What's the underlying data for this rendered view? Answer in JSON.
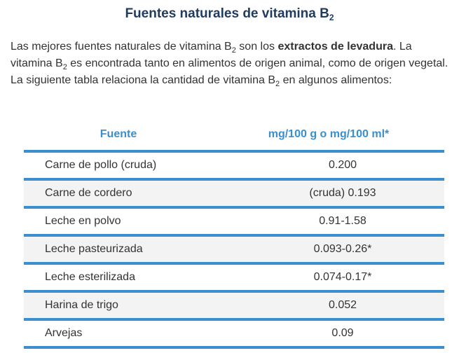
{
  "title": {
    "text": "Fuentes naturales de vitamina B",
    "sub": "2"
  },
  "intro": {
    "p1": "Las mejores fuentes naturales de vitamina B",
    "sub1": "2",
    "p2": " son los ",
    "bold": "extractos de levadura",
    "p3": ". La vitamina B",
    "sub2": "2",
    "p4": " es encontrada tanto en alimentos de origen animal, como de origen vegetal. La siguiente tabla relaciona la cantidad de vitamina B",
    "sub3": "2",
    "p5": " en algunos alimentos:"
  },
  "table": {
    "headers": [
      "Fuente",
      "mg/100 g o mg/100 ml*"
    ],
    "rows": [
      [
        "Carne de pollo (cruda)",
        "0.200"
      ],
      [
        "Carne de cordero",
        "(cruda) 0.193"
      ],
      [
        "Leche en polvo",
        "0.91-1.58"
      ],
      [
        "Leche pasteurizada",
        "0.093-0.26*"
      ],
      [
        "Leche esterilizada",
        "0.074-0.17*"
      ],
      [
        "Harina de trigo",
        "0.052"
      ],
      [
        "Arvejas",
        "0.09"
      ]
    ]
  },
  "colors": {
    "accent": "#3a8fcf",
    "title": "#1f3c5e",
    "text": "#333333",
    "row_alt": "#f3f3f3"
  }
}
